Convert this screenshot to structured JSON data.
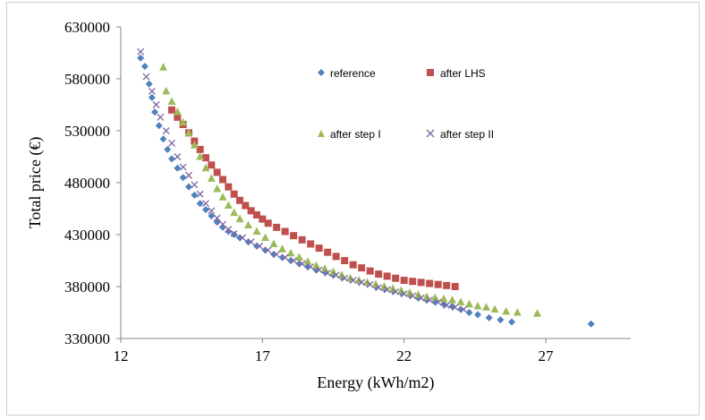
{
  "chart_data": {
    "type": "scatter",
    "xlabel": "Energy (kWh/m2)",
    "ylabel": "Total price (€)",
    "xlim": [
      12,
      30
    ],
    "ylim": [
      330000,
      630000
    ],
    "x_ticks": [
      "12",
      "17",
      "22",
      "27"
    ],
    "y_ticks": [
      "330000",
      "380000",
      "430000",
      "480000",
      "530000",
      "580000",
      "630000"
    ],
    "legend_placement": "inside-upper-middle",
    "series": [
      {
        "name": "reference",
        "marker": "diamond",
        "color": "#4f81bd",
        "points": [
          [
            12.7,
            600000
          ],
          [
            12.85,
            592000
          ],
          [
            13.0,
            575000
          ],
          [
            13.1,
            562000
          ],
          [
            13.2,
            548000
          ],
          [
            13.35,
            535000
          ],
          [
            13.5,
            522000
          ],
          [
            13.65,
            512000
          ],
          [
            13.8,
            503000
          ],
          [
            14.0,
            494000
          ],
          [
            14.2,
            485000
          ],
          [
            14.4,
            476000
          ],
          [
            14.6,
            468000
          ],
          [
            14.8,
            460000
          ],
          [
            15.0,
            454000
          ],
          [
            15.2,
            448000
          ],
          [
            15.4,
            442000
          ],
          [
            15.6,
            437000
          ],
          [
            15.8,
            433000
          ],
          [
            16.0,
            430000
          ],
          [
            16.2,
            427000
          ],
          [
            16.5,
            423000
          ],
          [
            16.8,
            419000
          ],
          [
            17.1,
            415000
          ],
          [
            17.4,
            411000
          ],
          [
            17.7,
            408000
          ],
          [
            18.0,
            405000
          ],
          [
            18.3,
            402000
          ],
          [
            18.6,
            399000
          ],
          [
            18.9,
            396000
          ],
          [
            19.2,
            394000
          ],
          [
            19.5,
            391000
          ],
          [
            19.8,
            389000
          ],
          [
            20.1,
            387000
          ],
          [
            20.4,
            385000
          ],
          [
            20.7,
            383000
          ],
          [
            21.0,
            380000
          ],
          [
            21.3,
            378000
          ],
          [
            21.6,
            376000
          ],
          [
            21.9,
            374000
          ],
          [
            22.2,
            372000
          ],
          [
            22.5,
            369000
          ],
          [
            22.8,
            367000
          ],
          [
            23.1,
            365000
          ],
          [
            23.4,
            363000
          ],
          [
            23.7,
            361000
          ],
          [
            24.0,
            358000
          ],
          [
            24.3,
            355000
          ],
          [
            24.6,
            353000
          ],
          [
            25.0,
            350000
          ],
          [
            25.4,
            348000
          ],
          [
            25.8,
            346000
          ],
          [
            28.6,
            344000
          ]
        ]
      },
      {
        "name": "after LHS",
        "marker": "square",
        "color": "#c0504d",
        "points": [
          [
            13.8,
            550000
          ],
          [
            14.0,
            543000
          ],
          [
            14.2,
            536000
          ],
          [
            14.4,
            528000
          ],
          [
            14.6,
            520000
          ],
          [
            14.8,
            512000
          ],
          [
            15.0,
            504000
          ],
          [
            15.2,
            497000
          ],
          [
            15.4,
            490000
          ],
          [
            15.6,
            483000
          ],
          [
            15.8,
            476000
          ],
          [
            16.0,
            469000
          ],
          [
            16.2,
            463000
          ],
          [
            16.4,
            458000
          ],
          [
            16.6,
            453000
          ],
          [
            16.8,
            449000
          ],
          [
            17.0,
            445000
          ],
          [
            17.2,
            441000
          ],
          [
            17.5,
            437000
          ],
          [
            17.8,
            433000
          ],
          [
            18.1,
            429000
          ],
          [
            18.4,
            425000
          ],
          [
            18.7,
            421000
          ],
          [
            19.0,
            417000
          ],
          [
            19.3,
            413000
          ],
          [
            19.6,
            409000
          ],
          [
            19.9,
            405000
          ],
          [
            20.2,
            401000
          ],
          [
            20.5,
            398000
          ],
          [
            20.8,
            395000
          ],
          [
            21.1,
            392000
          ],
          [
            21.4,
            390000
          ],
          [
            21.7,
            388000
          ],
          [
            22.0,
            386000
          ],
          [
            22.3,
            385000
          ],
          [
            22.6,
            384000
          ],
          [
            22.9,
            383000
          ],
          [
            23.2,
            382000
          ],
          [
            23.5,
            381000
          ],
          [
            23.8,
            380000
          ]
        ]
      },
      {
        "name": "after step I",
        "marker": "triangle",
        "color": "#9bbb59",
        "points": [
          [
            13.5,
            591000
          ],
          [
            13.6,
            568000
          ],
          [
            13.8,
            558000
          ],
          [
            14.0,
            548000
          ],
          [
            14.2,
            538000
          ],
          [
            14.4,
            528000
          ],
          [
            14.6,
            516000
          ],
          [
            14.8,
            505000
          ],
          [
            15.0,
            494000
          ],
          [
            15.2,
            484000
          ],
          [
            15.4,
            474000
          ],
          [
            15.6,
            466000
          ],
          [
            15.8,
            458000
          ],
          [
            16.0,
            451000
          ],
          [
            16.2,
            445000
          ],
          [
            16.5,
            439000
          ],
          [
            16.8,
            433000
          ],
          [
            17.1,
            427000
          ],
          [
            17.4,
            421000
          ],
          [
            17.7,
            416000
          ],
          [
            18.0,
            412000
          ],
          [
            18.3,
            408000
          ],
          [
            18.6,
            404000
          ],
          [
            18.9,
            400000
          ],
          [
            19.2,
            397000
          ],
          [
            19.5,
            394000
          ],
          [
            19.8,
            391000
          ],
          [
            20.1,
            388000
          ],
          [
            20.4,
            386000
          ],
          [
            20.7,
            384000
          ],
          [
            21.0,
            382000
          ],
          [
            21.3,
            380000
          ],
          [
            21.6,
            378000
          ],
          [
            21.9,
            376000
          ],
          [
            22.2,
            374000
          ],
          [
            22.5,
            372000
          ],
          [
            22.8,
            370000
          ],
          [
            23.1,
            369000
          ],
          [
            23.4,
            368000
          ],
          [
            23.7,
            367000
          ],
          [
            24.0,
            365000
          ],
          [
            24.3,
            363000
          ],
          [
            24.6,
            361000
          ],
          [
            24.9,
            360000
          ],
          [
            25.2,
            358000
          ],
          [
            25.6,
            356000
          ],
          [
            26.0,
            355000
          ],
          [
            26.7,
            354000
          ]
        ]
      },
      {
        "name": "after step II",
        "marker": "x",
        "color": "#8064a2",
        "points": [
          [
            12.7,
            606000
          ],
          [
            12.9,
            582000
          ],
          [
            13.1,
            568000
          ],
          [
            13.25,
            555000
          ],
          [
            13.4,
            543000
          ],
          [
            13.6,
            530000
          ],
          [
            13.8,
            518000
          ],
          [
            14.0,
            505000
          ],
          [
            14.2,
            495000
          ],
          [
            14.4,
            487000
          ],
          [
            14.6,
            478000
          ],
          [
            14.8,
            469000
          ],
          [
            15.0,
            460000
          ],
          [
            15.2,
            453000
          ],
          [
            15.4,
            446000
          ],
          [
            15.6,
            440000
          ],
          [
            15.8,
            435000
          ],
          [
            16.0,
            431000
          ],
          [
            16.3,
            427000
          ],
          [
            16.6,
            423000
          ],
          [
            16.9,
            419000
          ],
          [
            17.2,
            415000
          ],
          [
            17.5,
            411000
          ],
          [
            17.8,
            408000
          ],
          [
            18.1,
            405000
          ],
          [
            18.4,
            402000
          ],
          [
            18.7,
            399000
          ],
          [
            19.0,
            396000
          ],
          [
            19.3,
            393000
          ],
          [
            19.6,
            391000
          ],
          [
            19.9,
            388000
          ],
          [
            20.2,
            386000
          ],
          [
            20.5,
            384000
          ],
          [
            20.8,
            382000
          ],
          [
            21.1,
            379000
          ],
          [
            21.4,
            377000
          ],
          [
            21.7,
            375000
          ],
          [
            22.0,
            373000
          ],
          [
            22.3,
            371000
          ],
          [
            22.6,
            369000
          ],
          [
            22.9,
            367000
          ],
          [
            23.2,
            365000
          ],
          [
            23.5,
            362000
          ],
          [
            23.8,
            360000
          ],
          [
            24.1,
            358000
          ]
        ]
      }
    ]
  }
}
